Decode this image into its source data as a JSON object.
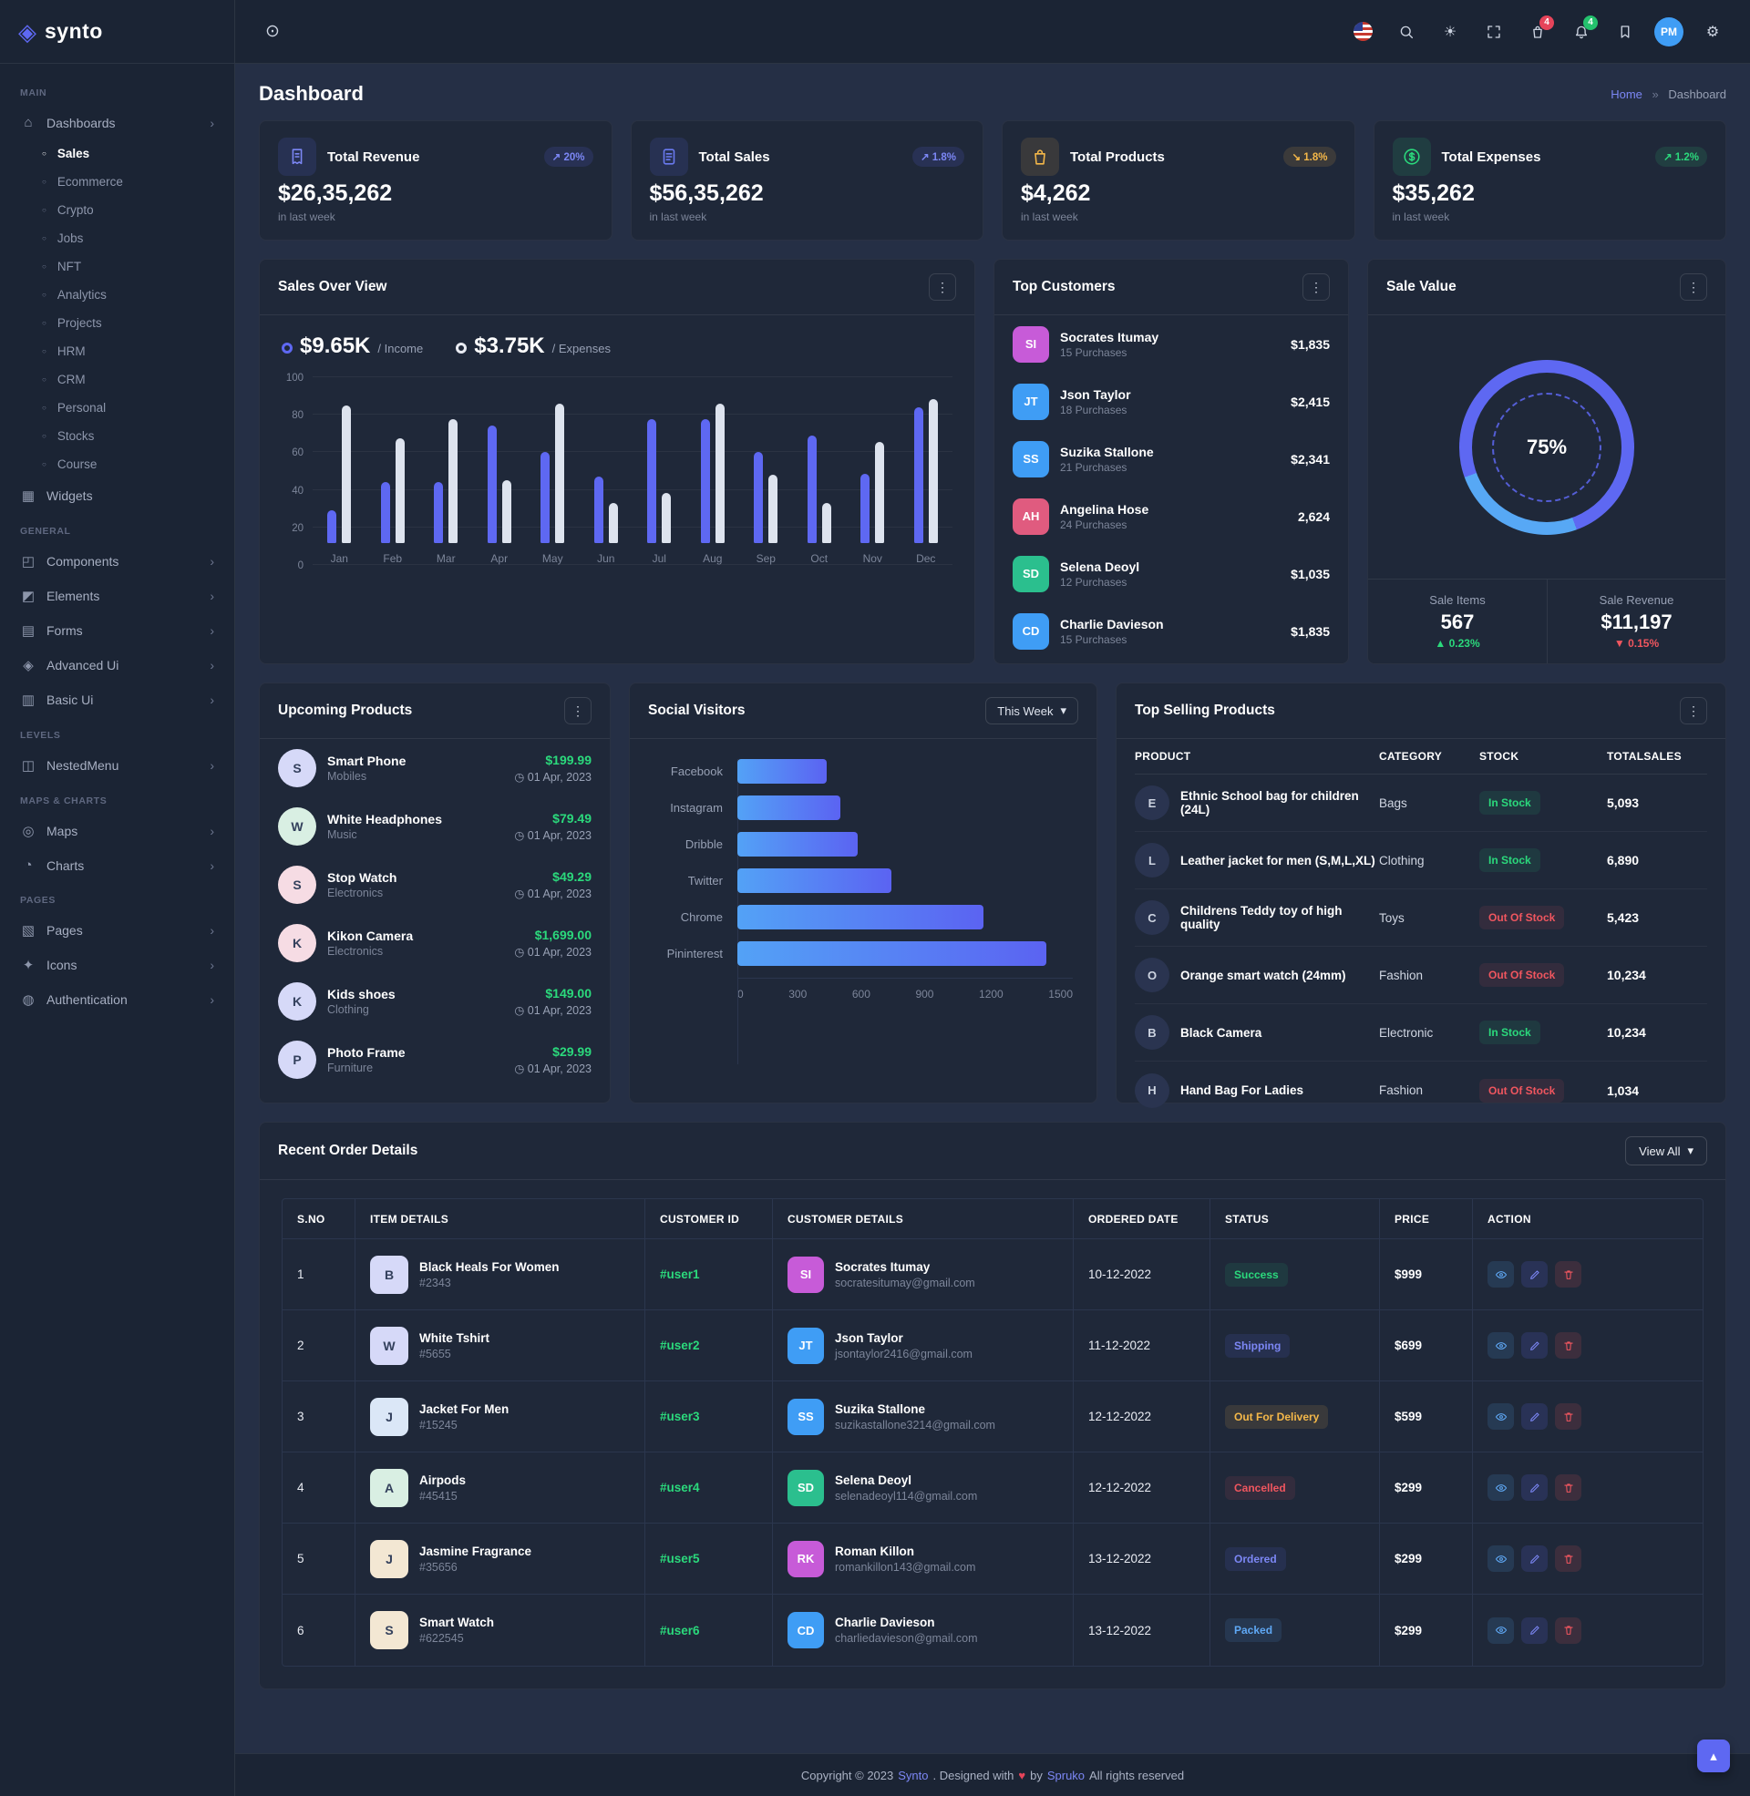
{
  "brand": {
    "name": "synto"
  },
  "header": {
    "cart_count": "4",
    "bell_count": "4",
    "avatar_name": "Pauline Moll"
  },
  "page": {
    "title": "Dashboard",
    "breadcrumb_home": "Home",
    "breadcrumb_sep": "»",
    "breadcrumb_current": "Dashboard"
  },
  "ui": {
    "dropdown_arrow": "▾",
    "scroll_top": "▴",
    "clock": "◷"
  },
  "sidebar": {
    "groups": [
      {
        "heading": "MAIN",
        "items": [
          {
            "icon": "⌂",
            "label": "Dashboards",
            "chevron": "›",
            "children": [
              {
                "label": "Sales",
                "active": true
              },
              {
                "label": "Ecommerce"
              },
              {
                "label": "Crypto"
              },
              {
                "label": "Jobs"
              },
              {
                "label": "NFT"
              },
              {
                "label": "Analytics"
              },
              {
                "label": "Projects"
              },
              {
                "label": "HRM"
              },
              {
                "label": "CRM"
              },
              {
                "label": "Personal"
              },
              {
                "label": "Stocks"
              },
              {
                "label": "Course"
              }
            ]
          },
          {
            "icon": "▦",
            "label": "Widgets",
            "chevron": ""
          }
        ]
      },
      {
        "heading": "GENERAL",
        "items": [
          {
            "icon": "◰",
            "label": "Components",
            "chevron": "›"
          },
          {
            "icon": "◩",
            "label": "Elements",
            "chevron": "›"
          },
          {
            "icon": "▤",
            "label": "Forms",
            "chevron": "›"
          },
          {
            "icon": "◈",
            "label": "Advanced Ui",
            "chevron": "›"
          },
          {
            "icon": "▥",
            "label": "Basic Ui",
            "chevron": "›"
          }
        ]
      },
      {
        "heading": "LEVELS",
        "items": [
          {
            "icon": "◫",
            "label": "NestedMenu",
            "chevron": "›"
          }
        ]
      },
      {
        "heading": "MAPS & CHARTS",
        "items": [
          {
            "icon": "◎",
            "label": "Maps",
            "chevron": "›"
          },
          {
            "icon": "◔",
            "label": "Charts",
            "chevron": "›"
          }
        ]
      },
      {
        "heading": "PAGES",
        "items": [
          {
            "icon": "▧",
            "label": "Pages",
            "chevron": "›"
          },
          {
            "icon": "✦",
            "label": "Icons",
            "chevron": "›"
          },
          {
            "icon": "◍",
            "label": "Authentication",
            "chevron": "›"
          }
        ]
      }
    ]
  },
  "stats": [
    {
      "title": "Total Revenue",
      "badge": "20%",
      "arrow": "↗",
      "tone": "indigo",
      "value": "$26,35,262",
      "period": "in last week"
    },
    {
      "title": "Total Sales",
      "badge": "1.8%",
      "arrow": "↗",
      "tone": "indigo",
      "value": "$56,35,262",
      "period": "in last week"
    },
    {
      "title": "Total Products",
      "badge": "1.8%",
      "arrow": "↘",
      "tone": "yellow",
      "value": "$4,262",
      "period": "in last week"
    },
    {
      "title": "Total Expenses",
      "badge": "1.2%",
      "arrow": "↗",
      "tone": "green",
      "value": "$35,262",
      "period": "in last week"
    }
  ],
  "panels": {
    "sales_over_view": {
      "title": "Sales Over View"
    },
    "top_customers": {
      "title": "Top Customers",
      "customers": [
        {
          "name": "Socrates Itumay",
          "purchases": "15 Purchases",
          "amount": "$1,835"
        },
        {
          "name": "Json Taylor",
          "purchases": "18 Purchases",
          "amount": "$2,415"
        },
        {
          "name": "Suzika Stallone",
          "purchases": "21 Purchases",
          "amount": "$2,341"
        },
        {
          "name": "Angelina Hose",
          "purchases": "24 Purchases",
          "amount": "2,624"
        },
        {
          "name": "Selena Deoyl",
          "purchases": "12 Purchases",
          "amount": "$1,035"
        },
        {
          "name": "Charlie Davieson",
          "purchases": "15 Purchases",
          "amount": "$1,835"
        }
      ]
    },
    "sale_value": {
      "title": "Sale Value",
      "cells": [
        {
          "label": "Sale Items",
          "value": "567",
          "arrow": "▲",
          "change": "0.23%",
          "tone": "green"
        },
        {
          "label": "Sale Revenue",
          "value": "$11,197",
          "arrow": "▼",
          "change": "0.15%",
          "tone": "red"
        }
      ]
    },
    "upcoming_products": {
      "title": "Upcoming Products",
      "products": [
        {
          "name": "Smart Phone",
          "category": "Mobiles",
          "price": "$199.99",
          "date": "01 Apr, 2023"
        },
        {
          "name": "White Headphones",
          "category": "Music",
          "price": "$79.49",
          "date": "01 Apr, 2023"
        },
        {
          "name": "Stop Watch",
          "category": "Electronics",
          "price": "$49.29",
          "date": "01 Apr, 2023"
        },
        {
          "name": "Kikon Camera",
          "category": "Electronics",
          "price": "$1,699.00",
          "date": "01 Apr, 2023"
        },
        {
          "name": "Kids shoes",
          "category": "Clothing",
          "price": "$149.00",
          "date": "01 Apr, 2023"
        },
        {
          "name": "Photo Frame",
          "category": "Furniture",
          "price": "$29.99",
          "date": "01 Apr, 2023"
        }
      ]
    },
    "social_visitors": {
      "title": "Social Visitors",
      "dropdown": "This Week"
    },
    "top_selling": {
      "title": "Top Selling Products",
      "headers": {
        "product": "PRODUCT",
        "category": "CATEGORY",
        "stock": "STOCK",
        "totalsales": "TOTALSALES"
      },
      "rows": [
        {
          "product": "Ethnic School bag for children (24L)",
          "category": "Bags",
          "stock": "In Stock",
          "stock_tone": "green",
          "total": "5,093"
        },
        {
          "product": "Leather jacket for men (S,M,L,XL)",
          "category": "Clothing",
          "stock": "In Stock",
          "stock_tone": "green",
          "total": "6,890"
        },
        {
          "product": "Childrens Teddy toy of high quality",
          "category": "Toys",
          "stock": "Out Of Stock",
          "stock_tone": "red",
          "total": "5,423"
        },
        {
          "product": "Orange smart watch (24mm)",
          "category": "Fashion",
          "stock": "Out Of Stock",
          "stock_tone": "red",
          "total": "10,234"
        },
        {
          "product": "Black Camera",
          "category": "Electronic",
          "stock": "In Stock",
          "stock_tone": "green",
          "total": "10,234"
        },
        {
          "product": "Hand Bag For Ladies",
          "category": "Fashion",
          "stock": "Out Of Stock",
          "stock_tone": "red",
          "total": "1,034"
        }
      ]
    },
    "recent_orders": {
      "title": "Recent Order Details",
      "view_all": "View All",
      "headers": {
        "sno": "S.NO",
        "item": "ITEM DETAILS",
        "cid": "CUSTOMER ID",
        "cust": "CUSTOMER DETAILS",
        "date": "ORDERED DATE",
        "status": "STATUS",
        "price": "PRICE",
        "action": "ACTION"
      },
      "rows": [
        {
          "sno": "1",
          "item": "Black Heals For Women",
          "code": "#2343",
          "cid": "#user1",
          "name": "Socrates Itumay",
          "email": "socratesitumay@gmail.com",
          "date": "10-12-2022",
          "status": "Success",
          "status_tone": "green",
          "price": "$999"
        },
        {
          "sno": "2",
          "item": "White Tshirt",
          "code": "#5655",
          "cid": "#user2",
          "name": "Json Taylor",
          "email": "jsontaylor2416@gmail.com",
          "date": "11-12-2022",
          "status": "Shipping",
          "status_tone": "indigo",
          "price": "$699"
        },
        {
          "sno": "3",
          "item": "Jacket For Men",
          "code": "#15245",
          "cid": "#user3",
          "name": "Suzika Stallone",
          "email": "suzikastallone3214@gmail.com",
          "date": "12-12-2022",
          "status": "Out For Delivery",
          "status_tone": "yellow",
          "price": "$599"
        },
        {
          "sno": "4",
          "item": "Airpods",
          "code": "#45415",
          "cid": "#user4",
          "name": "Selena Deoyl",
          "email": "selenadeoyl114@gmail.com",
          "date": "12-12-2022",
          "status": "Cancelled",
          "status_tone": "red",
          "price": "$299"
        },
        {
          "sno": "5",
          "item": "Jasmine Fragrance",
          "code": "#35656",
          "cid": "#user5",
          "name": "Roman Killon",
          "email": "romankillon143@gmail.com",
          "date": "13-12-2022",
          "status": "Ordered",
          "status_tone": "indigo",
          "price": "$299"
        },
        {
          "sno": "6",
          "item": "Smart Watch",
          "code": "#622545",
          "cid": "#user6",
          "name": "Charlie Davieson",
          "email": "charliedavieson@gmail.com",
          "date": "13-12-2022",
          "status": "Packed",
          "status_tone": "blue",
          "price": "$299"
        }
      ]
    }
  },
  "chart_data": [
    {
      "type": "bar",
      "title": "Sales Over View",
      "categories": [
        "Jan",
        "Feb",
        "Mar",
        "Apr",
        "May",
        "Jun",
        "Jul",
        "Aug",
        "Sep",
        "Oct",
        "Nov",
        "Dec"
      ],
      "series": [
        {
          "name": "Income",
          "color": "#5e68f2",
          "values": [
            20,
            37,
            37,
            71,
            55,
            40,
            75,
            75,
            55,
            65,
            42,
            82
          ]
        },
        {
          "name": "Expenses",
          "color": "#dde3ee",
          "values": [
            83,
            63,
            75,
            38,
            84,
            24,
            30,
            84,
            41,
            24,
            61,
            87
          ]
        }
      ],
      "ylim": [
        0,
        100
      ],
      "yticks": [
        0,
        20,
        40,
        60,
        80,
        100
      ],
      "grid": true,
      "legend_position": "top",
      "legend": [
        {
          "value": "$9.65K",
          "label": "/ Income"
        },
        {
          "value": "$3.75K",
          "label": "/ Expenses"
        }
      ]
    },
    {
      "type": "bar",
      "orientation": "horizontal",
      "title": "Social Visitors",
      "categories": [
        "Facebook",
        "Instagram",
        "Dribble",
        "Twitter",
        "Chrome",
        "Pininterest"
      ],
      "values": [
        400,
        460,
        540,
        690,
        1100,
        1380
      ],
      "xlim": [
        0,
        1500
      ],
      "xticks": [
        0,
        300,
        600,
        900,
        1200,
        1500
      ],
      "bar_gradient": [
        "#53a2f6",
        "#5b63f2"
      ]
    },
    {
      "type": "pie",
      "title": "Sale Value",
      "center_label": "75%",
      "rotation_deg": 250,
      "segments": [
        {
          "name": "primary",
          "value": 75,
          "color": "#5e68f2"
        },
        {
          "name": "secondary",
          "value": 25,
          "color": "#57a8f5"
        }
      ]
    }
  ],
  "footer": {
    "prefix": "Copyright © 2023",
    "brand": "Synto",
    "middle": ". Designed with",
    "heart": "♥",
    "by": "by",
    "designer": "Spruko",
    "suffix": "All rights reserved"
  }
}
